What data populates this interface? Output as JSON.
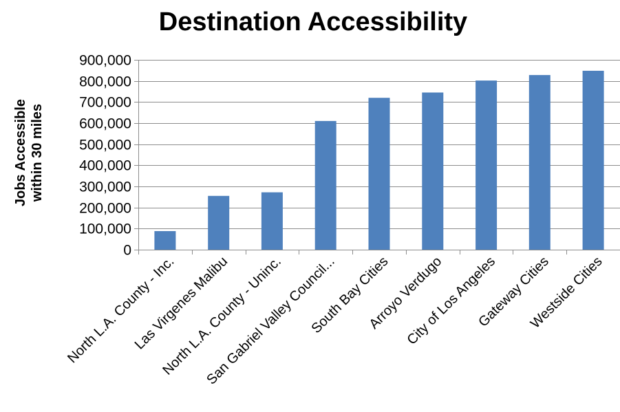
{
  "chart_data": {
    "type": "bar",
    "title": "Destination Accessibility",
    "ylabel_lines": [
      "Jobs Accessible",
      "within 30 miles"
    ],
    "xlabel": "",
    "ylim": [
      0,
      900000
    ],
    "y_ticks": [
      0,
      100000,
      200000,
      300000,
      400000,
      500000,
      600000,
      700000,
      800000,
      900000
    ],
    "y_tick_labels": [
      "0",
      "100,000",
      "200,000",
      "300,000",
      "400,000",
      "500,000",
      "600,000",
      "700,000",
      "800,000",
      "900,000"
    ],
    "grid": true,
    "legend": "none",
    "bar_color": "#4F81BD",
    "gridline_color": "#8C8C8C",
    "categories": [
      "North L.A. County - Inc.",
      "Las Virgenes Malibu",
      "North L.A. County - Uninc.",
      "San Gabriel Valley Council...",
      "South Bay Cities",
      "Arroyo Verdugo",
      "City of Los Angeles",
      "Gateway Cities",
      "Westside Cities"
    ],
    "values": [
      88000,
      255000,
      272000,
      610000,
      720000,
      745000,
      802000,
      828000,
      848000
    ]
  }
}
